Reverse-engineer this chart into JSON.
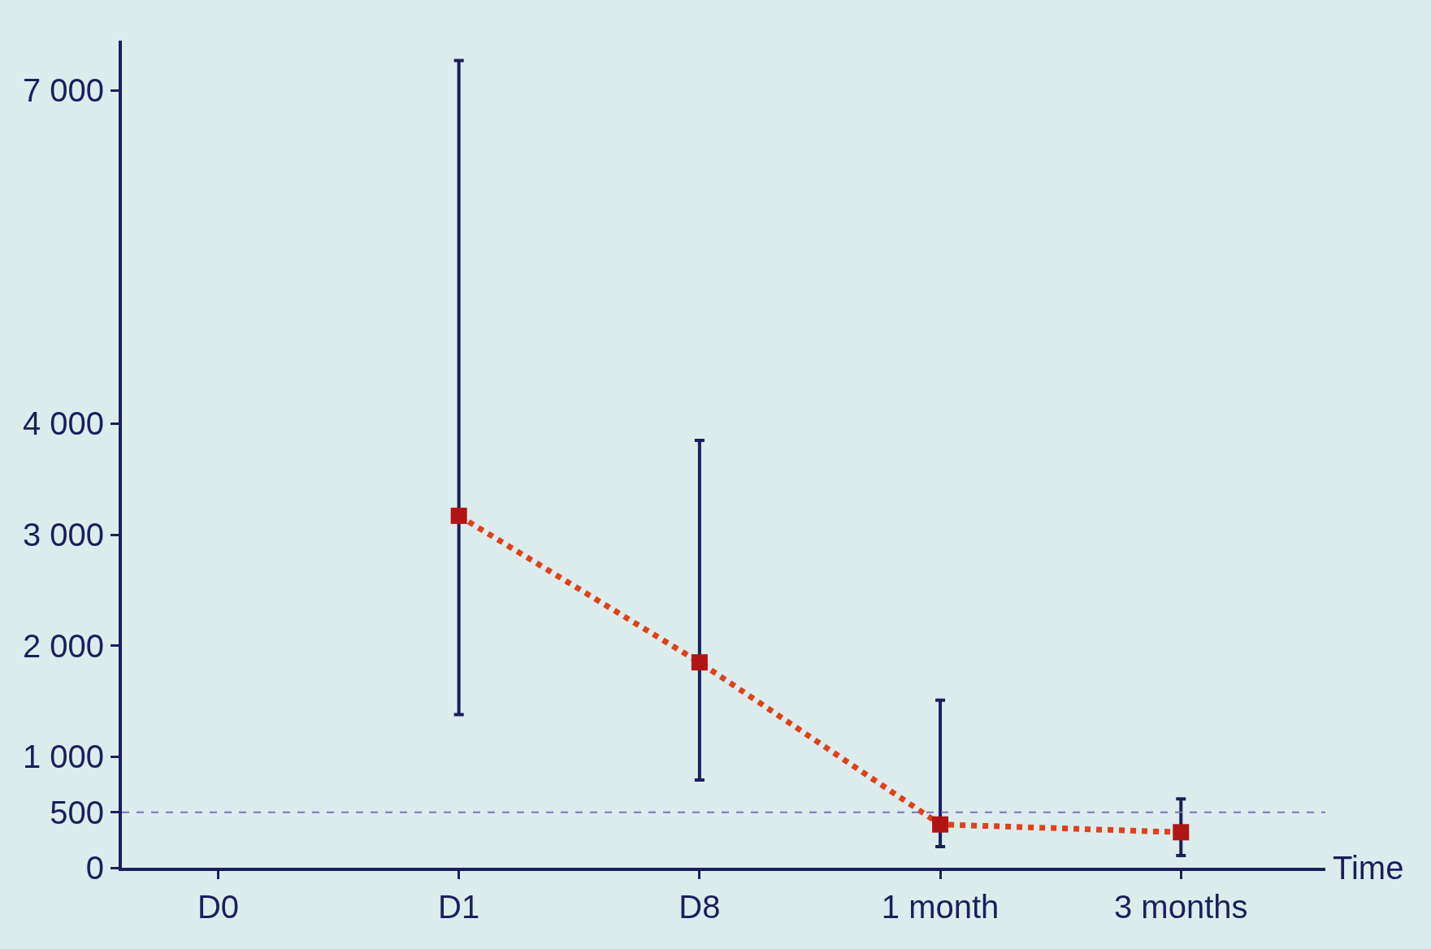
{
  "chart_data": {
    "type": "scatter",
    "xlabel": "Time",
    "categories": [
      "D0",
      "D1",
      "D8",
      "1 month",
      "3 months"
    ],
    "ylim": [
      0,
      7450
    ],
    "yticks": [
      0,
      500,
      {
        "value": 1000,
        "label": "1 000"
      },
      {
        "value": 2000,
        "label": "2 000"
      },
      {
        "value": 3000,
        "label": "3 000"
      },
      {
        "value": 4000,
        "label": "4 000"
      },
      {
        "value": 7000,
        "label": "7 000"
      }
    ],
    "series": [
      {
        "type": "line",
        "color": "#e0401a",
        "line_style": "dotted",
        "marker": "none",
        "values": [
          null,
          3170,
          1850,
          390,
          320
        ]
      },
      {
        "color": "#b01515",
        "marker": "square",
        "values": [
          null,
          3170,
          1850,
          390,
          320
        ],
        "errors": [
          null,
          [
            1380,
            7270
          ],
          [
            790,
            3850
          ],
          [
            190,
            1510
          ],
          [
            110,
            620
          ]
        ]
      }
    ],
    "ref_lines": [
      {
        "axis": "y",
        "value": 500,
        "color": "#7a70c8",
        "line_style": "dashed"
      }
    ],
    "grid": false,
    "legend": false
  }
}
